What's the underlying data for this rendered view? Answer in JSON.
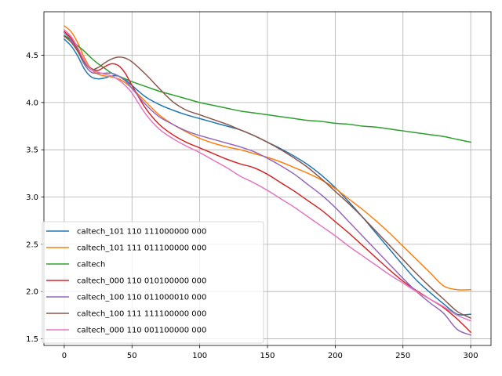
{
  "chart_data": {
    "type": "line",
    "title": "",
    "xlabel": "",
    "ylabel": "",
    "xlim": [
      -15,
      315
    ],
    "ylim": [
      1.43,
      4.96
    ],
    "xticks": [
      0,
      50,
      100,
      150,
      200,
      250,
      300
    ],
    "yticks": [
      1.5,
      2.0,
      2.5,
      3.0,
      3.5,
      4.0,
      4.5
    ],
    "xtick_labels": [
      "0",
      "50",
      "100",
      "150",
      "200",
      "250",
      "300"
    ],
    "ytick_labels": [
      "1.5",
      "2.0",
      "2.5",
      "3.0",
      "3.5",
      "4.0",
      "4.5"
    ],
    "grid": true,
    "legend_position": "lower-left",
    "series": [
      {
        "name": "caltech_101 110 111000000 000",
        "color": "#1f77b4",
        "x": [
          0,
          5,
          10,
          15,
          20,
          25,
          30,
          35,
          40,
          45,
          50,
          60,
          70,
          80,
          90,
          100,
          110,
          120,
          130,
          140,
          150,
          160,
          170,
          180,
          190,
          200,
          210,
          220,
          230,
          240,
          250,
          260,
          270,
          280,
          290,
          300
        ],
        "y": [
          4.67,
          4.6,
          4.49,
          4.35,
          4.27,
          4.25,
          4.26,
          4.28,
          4.28,
          4.24,
          4.18,
          4.06,
          3.98,
          3.92,
          3.87,
          3.83,
          3.79,
          3.75,
          3.71,
          3.65,
          3.58,
          3.51,
          3.43,
          3.34,
          3.23,
          3.1,
          2.95,
          2.79,
          2.62,
          2.45,
          2.28,
          2.12,
          1.99,
          1.87,
          1.76,
          1.76
        ]
      },
      {
        "name": "caltech_101 111 011100000 000",
        "color": "#ff7f0e",
        "x": [
          0,
          5,
          10,
          15,
          20,
          25,
          30,
          35,
          40,
          45,
          50,
          60,
          70,
          80,
          90,
          100,
          110,
          120,
          130,
          140,
          150,
          160,
          170,
          180,
          190,
          200,
          210,
          220,
          230,
          240,
          250,
          260,
          270,
          280,
          290,
          300
        ],
        "y": [
          4.81,
          4.75,
          4.63,
          4.47,
          4.35,
          4.3,
          4.28,
          4.27,
          4.25,
          4.21,
          4.15,
          4.01,
          3.87,
          3.77,
          3.69,
          3.62,
          3.57,
          3.53,
          3.5,
          3.46,
          3.42,
          3.37,
          3.31,
          3.25,
          3.18,
          3.09,
          2.98,
          2.87,
          2.75,
          2.62,
          2.48,
          2.34,
          2.2,
          2.06,
          2.02,
          2.02
        ]
      },
      {
        "name": "caltech",
        "color": "#2ca02c",
        "x": [
          0,
          5,
          10,
          15,
          20,
          25,
          30,
          35,
          40,
          45,
          50,
          60,
          70,
          80,
          90,
          100,
          110,
          120,
          130,
          140,
          150,
          160,
          170,
          180,
          190,
          200,
          210,
          220,
          230,
          240,
          250,
          260,
          270,
          280,
          290,
          300
        ],
        "y": [
          4.71,
          4.66,
          4.6,
          4.54,
          4.47,
          4.41,
          4.36,
          4.31,
          4.28,
          4.25,
          4.22,
          4.17,
          4.12,
          4.08,
          4.04,
          4.0,
          3.97,
          3.94,
          3.91,
          3.89,
          3.87,
          3.85,
          3.83,
          3.81,
          3.8,
          3.78,
          3.77,
          3.75,
          3.74,
          3.72,
          3.7,
          3.68,
          3.66,
          3.64,
          3.61,
          3.58
        ]
      },
      {
        "name": "caltech_000 110 010100000 000",
        "color": "#d62728",
        "x": [
          0,
          5,
          10,
          15,
          20,
          25,
          30,
          35,
          40,
          45,
          50,
          60,
          70,
          80,
          90,
          100,
          110,
          120,
          130,
          140,
          150,
          160,
          170,
          180,
          190,
          200,
          210,
          220,
          230,
          240,
          250,
          260,
          270,
          280,
          290,
          300
        ],
        "y": [
          4.75,
          4.68,
          4.56,
          4.43,
          4.36,
          4.34,
          4.38,
          4.41,
          4.39,
          4.31,
          4.18,
          3.94,
          3.77,
          3.66,
          3.58,
          3.52,
          3.46,
          3.4,
          3.35,
          3.31,
          3.24,
          3.15,
          3.06,
          2.96,
          2.86,
          2.74,
          2.62,
          2.49,
          2.36,
          2.23,
          2.11,
          2.01,
          1.92,
          1.83,
          1.71,
          1.57
        ]
      },
      {
        "name": "caltech_100 110 011000010 000",
        "color": "#9467bd",
        "x": [
          0,
          5,
          10,
          15,
          20,
          25,
          30,
          35,
          40,
          45,
          50,
          60,
          70,
          80,
          90,
          100,
          110,
          120,
          130,
          140,
          150,
          160,
          170,
          180,
          190,
          200,
          210,
          220,
          230,
          240,
          250,
          260,
          270,
          280,
          290,
          300
        ],
        "y": [
          4.74,
          4.66,
          4.54,
          4.4,
          4.32,
          4.31,
          4.31,
          4.31,
          4.28,
          4.23,
          4.15,
          3.98,
          3.85,
          3.77,
          3.7,
          3.65,
          3.61,
          3.57,
          3.53,
          3.48,
          3.41,
          3.33,
          3.24,
          3.13,
          3.02,
          2.89,
          2.74,
          2.59,
          2.44,
          2.29,
          2.14,
          2.0,
          1.88,
          1.77,
          1.6,
          1.54
        ]
      },
      {
        "name": "caltech_100 111 111100000 000",
        "color": "#8c564b",
        "x": [
          0,
          5,
          10,
          15,
          20,
          25,
          30,
          35,
          40,
          45,
          50,
          60,
          70,
          80,
          90,
          100,
          110,
          120,
          130,
          140,
          150,
          160,
          170,
          180,
          190,
          200,
          210,
          220,
          230,
          240,
          250,
          260,
          270,
          280,
          290,
          300
        ],
        "y": [
          4.7,
          4.64,
          4.54,
          4.42,
          4.35,
          4.37,
          4.42,
          4.46,
          4.48,
          4.47,
          4.43,
          4.3,
          4.15,
          4.01,
          3.92,
          3.87,
          3.82,
          3.77,
          3.71,
          3.65,
          3.58,
          3.5,
          3.41,
          3.31,
          3.19,
          3.06,
          2.93,
          2.79,
          2.64,
          2.49,
          2.34,
          2.19,
          2.05,
          1.92,
          1.79,
          1.72
        ]
      },
      {
        "name": "caltech_000 110 001100000 000",
        "color": "#e377c2",
        "x": [
          0,
          5,
          10,
          15,
          20,
          25,
          30,
          35,
          40,
          45,
          50,
          60,
          70,
          80,
          90,
          100,
          110,
          120,
          130,
          140,
          150,
          160,
          170,
          180,
          190,
          200,
          210,
          220,
          230,
          240,
          250,
          260,
          270,
          280,
          290,
          300
        ],
        "y": [
          4.77,
          4.7,
          4.58,
          4.44,
          4.35,
          4.32,
          4.3,
          4.28,
          4.24,
          4.18,
          4.1,
          3.88,
          3.72,
          3.62,
          3.54,
          3.47,
          3.39,
          3.31,
          3.22,
          3.15,
          3.07,
          2.98,
          2.89,
          2.79,
          2.69,
          2.59,
          2.48,
          2.38,
          2.28,
          2.18,
          2.09,
          2.0,
          1.92,
          1.84,
          1.75,
          1.69
        ]
      }
    ]
  }
}
